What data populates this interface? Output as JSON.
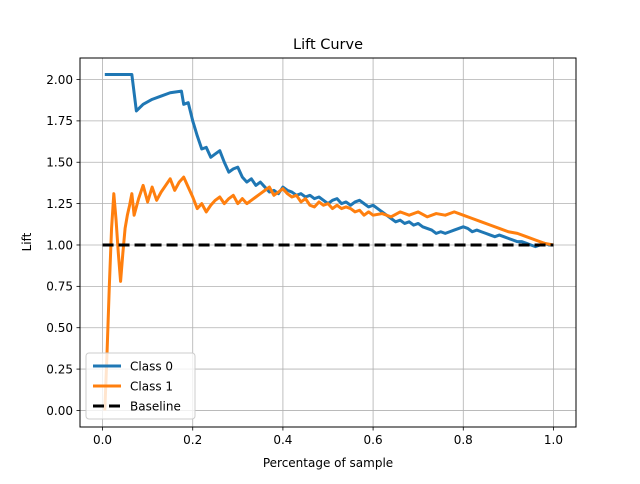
{
  "chart_data": {
    "type": "line",
    "title": "Lift Curve",
    "xlabel": "Percentage of sample",
    "ylabel": "Lift",
    "xlim": [
      -0.05,
      1.05
    ],
    "ylim": [
      -0.1,
      2.13
    ],
    "xticks": [
      0.0,
      0.2,
      0.4,
      0.6,
      0.8,
      1.0
    ],
    "xtick_labels": [
      "0.0",
      "0.2",
      "0.4",
      "0.6",
      "0.8",
      "1.0"
    ],
    "yticks": [
      0.0,
      0.25,
      0.5,
      0.75,
      1.0,
      1.25,
      1.5,
      1.75,
      2.0
    ],
    "ytick_labels": [
      "0.00",
      "0.25",
      "0.50",
      "0.75",
      "1.00",
      "1.25",
      "1.50",
      "1.75",
      "2.00"
    ],
    "grid": true,
    "legend_position": "lower-left",
    "series": [
      {
        "name": "Class 0",
        "color": "#1f77b4",
        "style": "solid",
        "x": [
          0.005,
          0.065,
          0.075,
          0.09,
          0.11,
          0.13,
          0.15,
          0.175,
          0.18,
          0.19,
          0.2,
          0.21,
          0.22,
          0.23,
          0.24,
          0.25,
          0.26,
          0.27,
          0.28,
          0.29,
          0.3,
          0.31,
          0.32,
          0.33,
          0.34,
          0.35,
          0.36,
          0.37,
          0.38,
          0.39,
          0.4,
          0.41,
          0.42,
          0.43,
          0.44,
          0.45,
          0.46,
          0.47,
          0.48,
          0.49,
          0.5,
          0.51,
          0.52,
          0.53,
          0.54,
          0.55,
          0.56,
          0.57,
          0.58,
          0.59,
          0.6,
          0.61,
          0.62,
          0.63,
          0.64,
          0.65,
          0.66,
          0.67,
          0.68,
          0.69,
          0.7,
          0.71,
          0.72,
          0.73,
          0.74,
          0.75,
          0.76,
          0.77,
          0.78,
          0.79,
          0.8,
          0.81,
          0.82,
          0.83,
          0.84,
          0.85,
          0.86,
          0.87,
          0.88,
          0.89,
          0.9,
          0.91,
          0.92,
          0.93,
          0.94,
          0.95,
          0.96,
          0.97,
          0.98,
          0.99,
          1.0
        ],
        "y": [
          2.03,
          2.03,
          1.81,
          1.85,
          1.88,
          1.9,
          1.92,
          1.93,
          1.85,
          1.86,
          1.75,
          1.66,
          1.58,
          1.59,
          1.53,
          1.55,
          1.57,
          1.5,
          1.44,
          1.46,
          1.47,
          1.41,
          1.38,
          1.4,
          1.36,
          1.38,
          1.35,
          1.32,
          1.33,
          1.31,
          1.35,
          1.33,
          1.32,
          1.3,
          1.31,
          1.29,
          1.3,
          1.28,
          1.29,
          1.27,
          1.25,
          1.27,
          1.28,
          1.25,
          1.26,
          1.24,
          1.26,
          1.27,
          1.25,
          1.23,
          1.24,
          1.22,
          1.2,
          1.18,
          1.16,
          1.14,
          1.15,
          1.13,
          1.14,
          1.12,
          1.13,
          1.11,
          1.1,
          1.09,
          1.07,
          1.08,
          1.07,
          1.08,
          1.09,
          1.1,
          1.11,
          1.1,
          1.08,
          1.09,
          1.08,
          1.07,
          1.06,
          1.05,
          1.06,
          1.05,
          1.04,
          1.03,
          1.02,
          1.02,
          1.01,
          1.0,
          0.99,
          1.0,
          1.01,
          1.0,
          1.0
        ]
      },
      {
        "name": "Class 1",
        "color": "#ff7f0e",
        "style": "solid",
        "x": [
          0.005,
          0.01,
          0.015,
          0.02,
          0.025,
          0.03,
          0.035,
          0.04,
          0.045,
          0.05,
          0.055,
          0.06,
          0.065,
          0.07,
          0.08,
          0.09,
          0.1,
          0.11,
          0.12,
          0.13,
          0.14,
          0.15,
          0.16,
          0.17,
          0.18,
          0.19,
          0.2,
          0.21,
          0.22,
          0.23,
          0.24,
          0.25,
          0.26,
          0.27,
          0.28,
          0.29,
          0.3,
          0.31,
          0.32,
          0.33,
          0.34,
          0.35,
          0.36,
          0.37,
          0.38,
          0.39,
          0.4,
          0.41,
          0.42,
          0.43,
          0.44,
          0.45,
          0.46,
          0.47,
          0.48,
          0.49,
          0.5,
          0.51,
          0.52,
          0.53,
          0.54,
          0.55,
          0.56,
          0.57,
          0.58,
          0.59,
          0.6,
          0.62,
          0.64,
          0.66,
          0.68,
          0.7,
          0.72,
          0.74,
          0.76,
          0.78,
          0.8,
          0.82,
          0.84,
          0.86,
          0.88,
          0.9,
          0.92,
          0.94,
          0.96,
          0.98,
          1.0
        ],
        "y": [
          0.0,
          0.35,
          0.75,
          1.1,
          1.31,
          1.15,
          0.95,
          0.78,
          0.95,
          1.1,
          1.18,
          1.24,
          1.31,
          1.18,
          1.28,
          1.36,
          1.26,
          1.35,
          1.27,
          1.32,
          1.36,
          1.4,
          1.33,
          1.38,
          1.41,
          1.35,
          1.29,
          1.22,
          1.25,
          1.2,
          1.24,
          1.27,
          1.29,
          1.25,
          1.28,
          1.3,
          1.25,
          1.28,
          1.25,
          1.27,
          1.29,
          1.31,
          1.33,
          1.35,
          1.3,
          1.32,
          1.34,
          1.31,
          1.29,
          1.3,
          1.26,
          1.28,
          1.24,
          1.23,
          1.26,
          1.24,
          1.25,
          1.22,
          1.24,
          1.22,
          1.23,
          1.22,
          1.2,
          1.21,
          1.18,
          1.2,
          1.18,
          1.19,
          1.17,
          1.2,
          1.18,
          1.2,
          1.17,
          1.19,
          1.18,
          1.2,
          1.18,
          1.16,
          1.14,
          1.12,
          1.1,
          1.08,
          1.07,
          1.05,
          1.03,
          1.01,
          1.0
        ]
      },
      {
        "name": "Baseline",
        "color": "#000000",
        "style": "dashed",
        "x": [
          0.0,
          1.0
        ],
        "y": [
          1.0,
          1.0
        ]
      }
    ]
  }
}
